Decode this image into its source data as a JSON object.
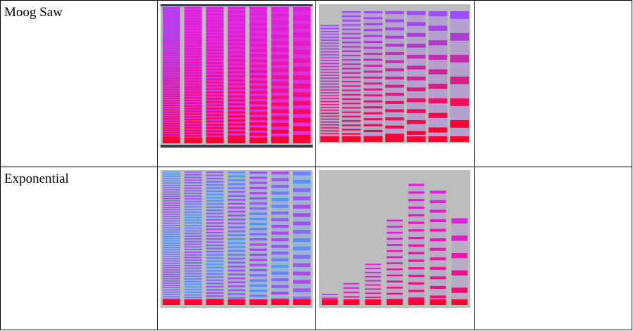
{
  "rows": [
    {
      "label": "Moog Saw"
    },
    {
      "label": "Exponential"
    }
  ],
  "colors": {
    "background": "#bdbdbd",
    "red": "#ff0033",
    "magenta": "#e020e0",
    "violet": "#9a4cff",
    "blue": "#4a9cff",
    "frame": "#3a3a4a"
  }
}
